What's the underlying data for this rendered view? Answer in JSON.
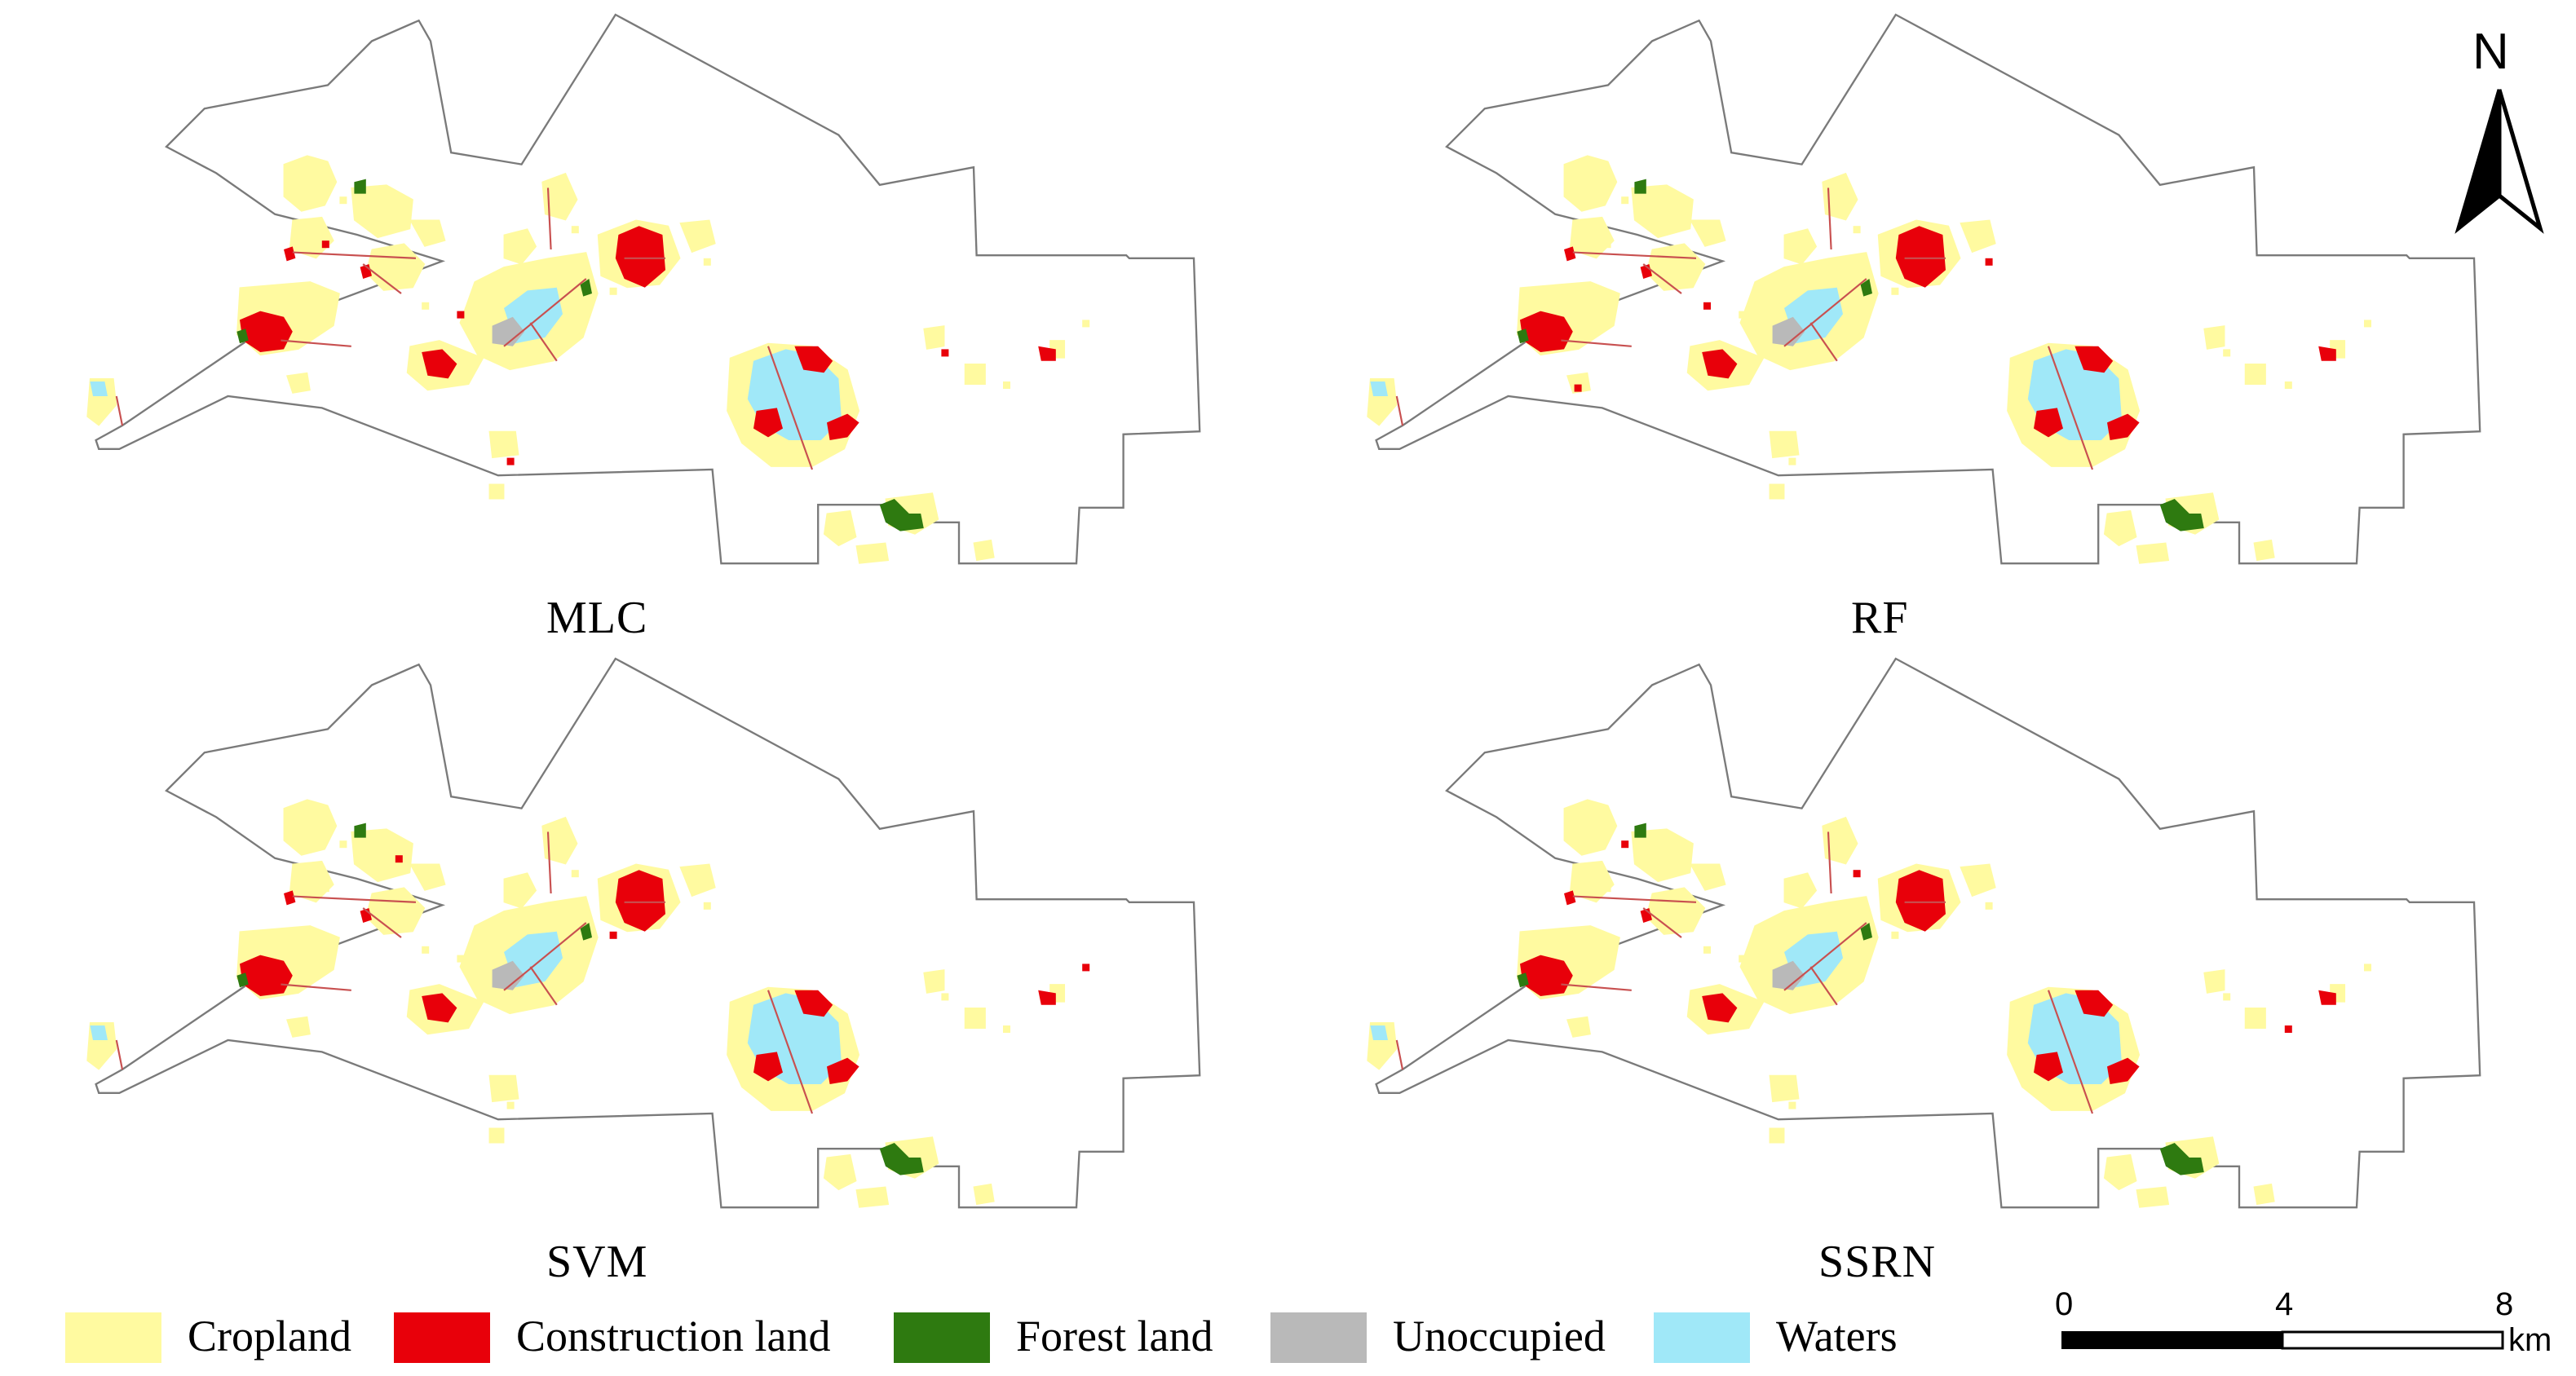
{
  "panels": [
    {
      "id": "mlc",
      "label": "MLC"
    },
    {
      "id": "rf",
      "label": "RF"
    },
    {
      "id": "svm",
      "label": "SVM"
    },
    {
      "id": "ssrn",
      "label": "SSRN"
    }
  ],
  "north": {
    "label": "N",
    "icon": "north-arrow-icon"
  },
  "legend": [
    {
      "key": "cropland",
      "label": "Cropland",
      "color": "#fffaa0"
    },
    {
      "key": "construction",
      "label": "Construction land",
      "color": "#e8000a"
    },
    {
      "key": "forest",
      "label": "Forest land",
      "color": "#2e7a10"
    },
    {
      "key": "unoccupied",
      "label": "Unoccupied",
      "color": "#b9b9b9"
    },
    {
      "key": "waters",
      "label": "Waters",
      "color": "#a0e8f8"
    }
  ],
  "scalebar": {
    "ticks": [
      "0",
      "4",
      "8"
    ],
    "unit": "km"
  }
}
